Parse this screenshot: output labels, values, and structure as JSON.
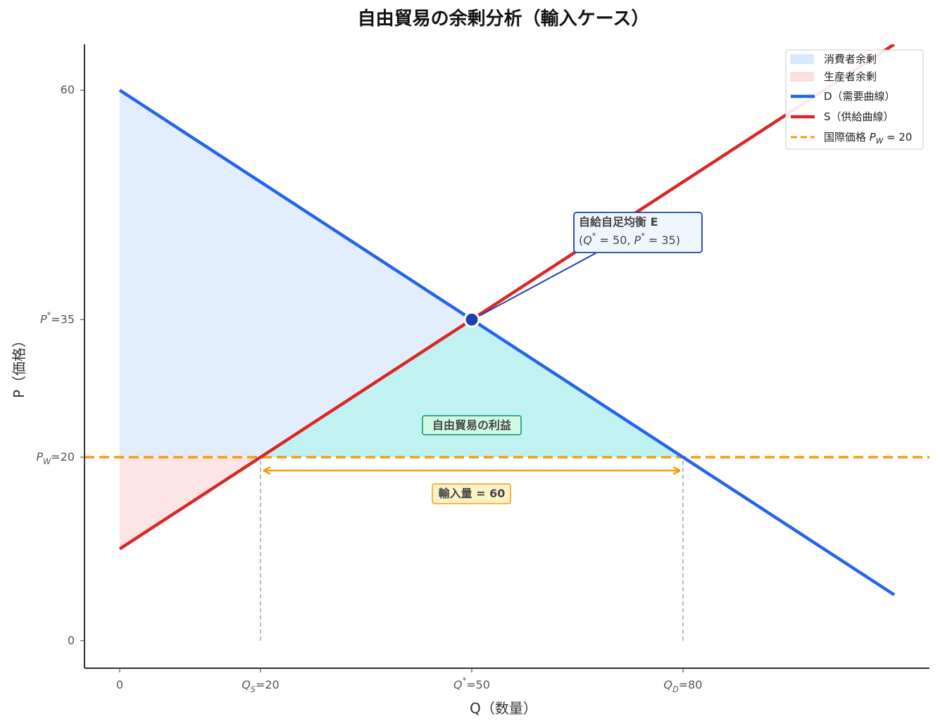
{
  "chart_data": {
    "type": "line",
    "title": "自由貿易の余剰分析（輸入ケース）",
    "x_label": "Q（数量）",
    "y_label": "P（価格）",
    "x": [
      0,
      110
    ],
    "series": [
      {
        "name": "D（需要曲線）",
        "color": "#2563eb",
        "values": [
          60,
          5
        ]
      },
      {
        "name": "S（供給曲線）",
        "color": "#dc2626",
        "values": [
          10,
          65
        ]
      }
    ],
    "world_price": {
      "name": "国際価格 PW = 20",
      "value": 20,
      "color": "#f59e0b"
    },
    "areas": [
      {
        "name": "消費者余剰",
        "color": "#dbeafe"
      },
      {
        "name": "生産者余剰",
        "color": "#fee2e2"
      }
    ],
    "gain_color": "#99f6e4",
    "equilibrium": {
      "x": 50,
      "y": 35,
      "color": "#1e40af"
    },
    "annotations": {
      "equilibrium_title": "自給自足均衡 E",
      "equilibrium_coords": "(Q* = 50, P* = 35)",
      "gain": "自由貿易の利益",
      "imports": "輸入量 = 60"
    },
    "xlim": [
      -5,
      115
    ],
    "ylim": [
      -3,
      65
    ],
    "xticks": [
      0,
      {
        "value": 20,
        "label": "QS=20"
      },
      {
        "value": 50,
        "label": "Q*=50"
      },
      {
        "value": 80,
        "label": "QD=80"
      }
    ],
    "yticks": [
      0,
      {
        "value": 20,
        "label": "PW=20"
      },
      {
        "value": 35,
        "label": "P*=35"
      },
      60
    ],
    "legend": "upper right"
  }
}
